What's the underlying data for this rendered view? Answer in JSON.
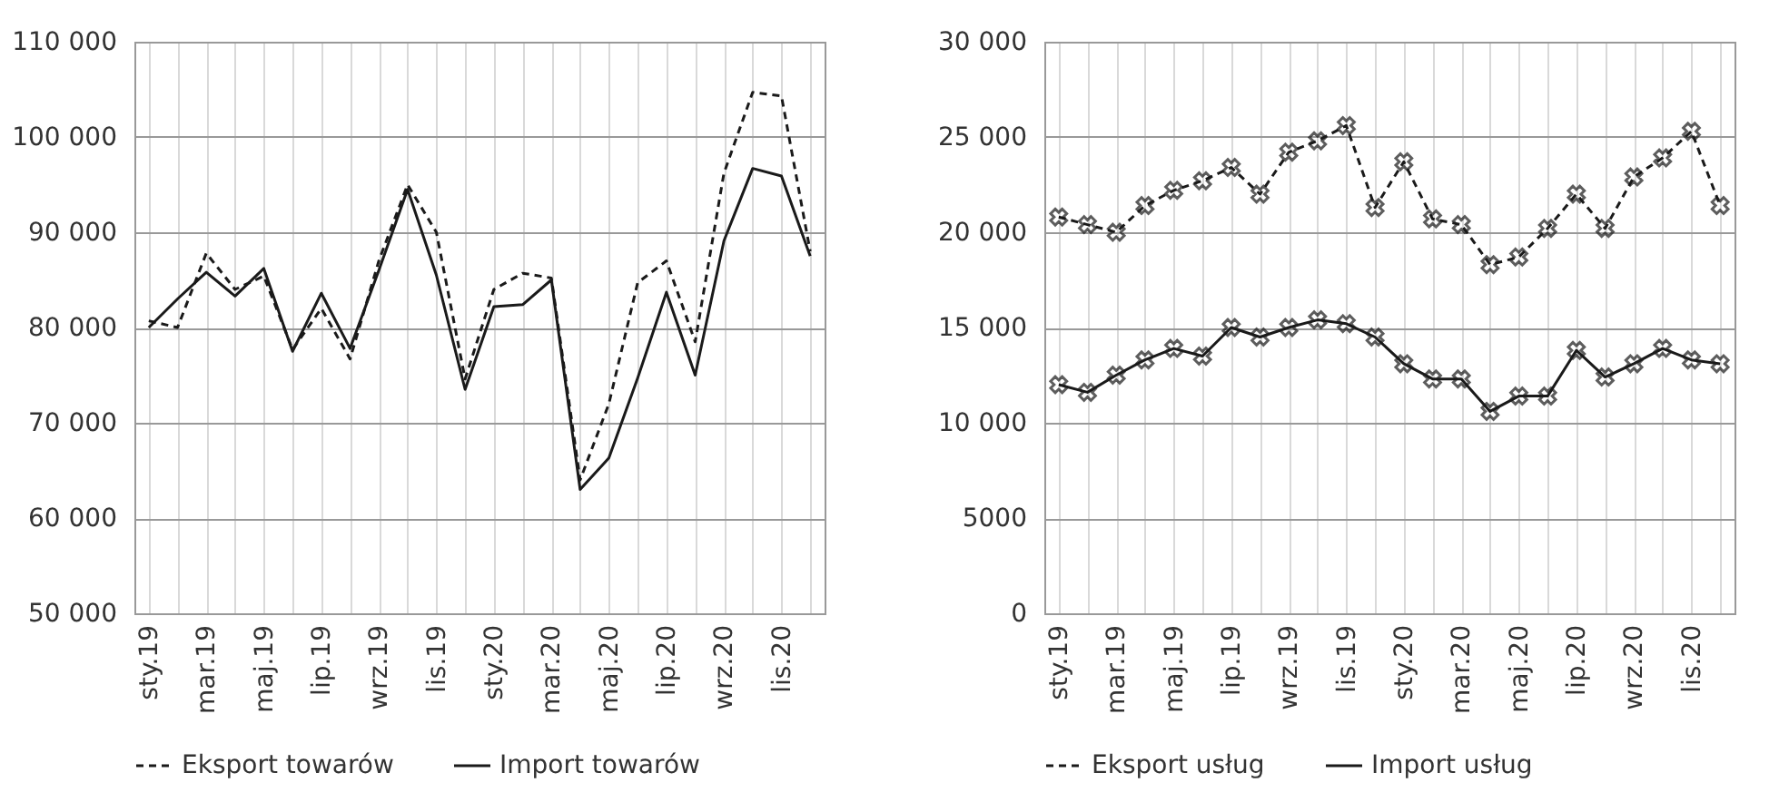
{
  "chart_data": [
    {
      "type": "line",
      "categories": [
        "sty.19",
        null,
        "mar.19",
        null,
        "maj.19",
        null,
        "lip.19",
        null,
        "wrz.19",
        null,
        "lis.19",
        null,
        "sty.20",
        null,
        "mar.20",
        null,
        "maj.20",
        null,
        "lip.20",
        null,
        "wrz.20",
        null,
        "lis.20",
        null
      ],
      "series": [
        {
          "name": "Eksport towarów",
          "color": "#1a1a1a",
          "line_style": "dashed",
          "values": [
            80700,
            80000,
            87800,
            84000,
            85400,
            77700,
            82000,
            76700,
            87000,
            95000,
            90000,
            74600,
            84000,
            85700,
            85200,
            64000,
            72000,
            84700,
            87000,
            78500,
            96200,
            104700,
            104300,
            88000
          ]
        },
        {
          "name": "Import towarów",
          "color": "#1a1a1a",
          "line_style": "solid",
          "values": [
            80000,
            83000,
            85800,
            83300,
            86200,
            77500,
            83600,
            77800,
            86000,
            94500,
            85500,
            73500,
            82200,
            82400,
            85000,
            63000,
            66300,
            74700,
            83700,
            75000,
            89100,
            96700,
            95900,
            87500
          ]
        }
      ],
      "ylim": [
        50000,
        110000
      ],
      "yticks": [
        {
          "value": 50000,
          "label": "50 000"
        },
        {
          "value": 60000,
          "label": "60 000"
        },
        {
          "value": 70000,
          "label": "70 000"
        },
        {
          "value": 80000,
          "label": "80 000"
        },
        {
          "value": 90000,
          "label": "90 000"
        },
        {
          "value": 100000,
          "label": "100 000"
        },
        {
          "value": 110000,
          "label": "110 000"
        }
      ],
      "grid": true,
      "legend": "bottom"
    },
    {
      "type": "line",
      "categories": [
        "sty.19",
        null,
        "mar.19",
        null,
        "maj.19",
        null,
        "lip.19",
        null,
        "wrz.19",
        null,
        "lis.19",
        null,
        "sty.20",
        null,
        "mar.20",
        null,
        "maj.20",
        null,
        "lip.20",
        null,
        "wrz.20",
        null,
        "lis.20",
        null
      ],
      "series": [
        {
          "name": "Eksport usług",
          "color": "#1a1a1a",
          "line_style": "dashed",
          "values": [
            20800,
            20400,
            20000,
            21400,
            22200,
            22700,
            23400,
            22000,
            24200,
            24800,
            25600,
            21300,
            23700,
            20700,
            20400,
            18300,
            18700,
            20200,
            22000,
            20200,
            22900,
            23900,
            25300,
            21400
          ]
        },
        {
          "name": "Import usług",
          "color": "#1a1a1a",
          "line_style": "solid",
          "values": [
            12000,
            11600,
            12500,
            13300,
            13900,
            13500,
            15000,
            14500,
            15000,
            15400,
            15200,
            14500,
            13100,
            12300,
            12300,
            10600,
            11400,
            11400,
            13800,
            12400,
            13100,
            13900,
            13300,
            13100
          ]
        }
      ],
      "ylim": [
        0,
        30000
      ],
      "yticks": [
        0,
        5000,
        {
          "value": 10000,
          "label": "10 000"
        },
        {
          "value": 15000,
          "label": "15 000"
        },
        {
          "value": 20000,
          "label": "20 000"
        },
        {
          "value": 25000,
          "label": "25 000"
        },
        {
          "value": 30000,
          "label": "30 000"
        }
      ],
      "grid": true,
      "legend": "bottom",
      "marker": "cross"
    }
  ]
}
